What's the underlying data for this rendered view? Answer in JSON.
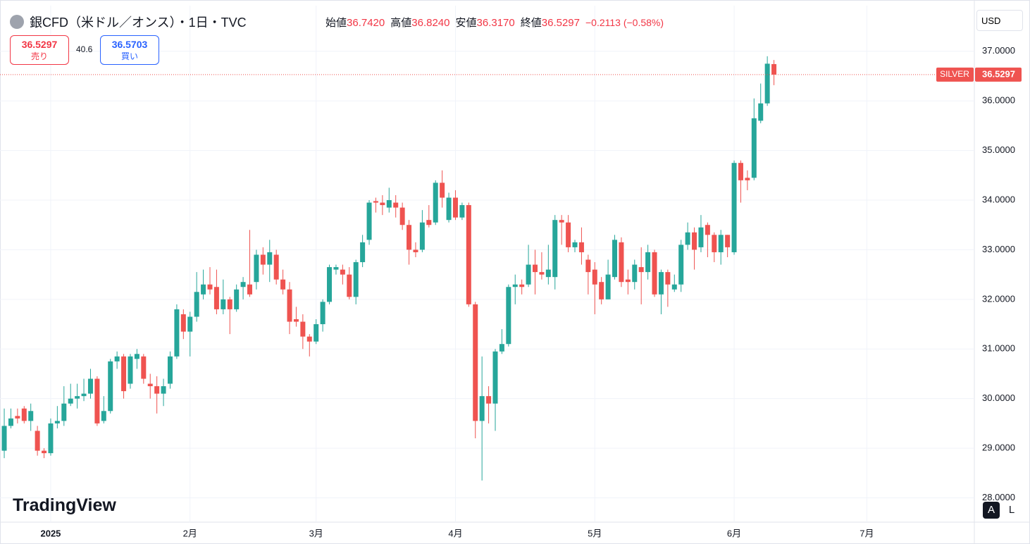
{
  "chart_data": {
    "type": "candlestick",
    "title": "銀CFD（米ドル／オンス）・1日・TVC",
    "ohlc_legend": {
      "labels": [
        "始値",
        "高値",
        "安値",
        "終値"
      ],
      "values": [
        36.742,
        36.824,
        36.317,
        36.5297
      ],
      "value_labels": [
        "36.7420",
        "36.8240",
        "36.3170",
        "36.5297"
      ]
    },
    "change": "−0.2113 (−0.58%)",
    "sell": {
      "price": "36.5297",
      "label": "売り"
    },
    "spread": "40.6",
    "buy": {
      "price": "36.5703",
      "label": "買い"
    },
    "currency": "USD",
    "symbol_tag": "SILVER",
    "last_price": {
      "value": 36.5297,
      "label": "36.5297"
    },
    "logo": "TradingView",
    "buttons": [
      "A",
      "L"
    ],
    "up_color": "#26a69a",
    "down_color": "#ef5350",
    "grid": true,
    "x": [
      0,
      1,
      2,
      3,
      4,
      5,
      6,
      7,
      8,
      9,
      10,
      11,
      12,
      13,
      14,
      15,
      16,
      17,
      18,
      19,
      20,
      21,
      22,
      23,
      24,
      25,
      26,
      27,
      28,
      29,
      30,
      31,
      32,
      33,
      34,
      35,
      36,
      37,
      38,
      39,
      40,
      41,
      42,
      43,
      44,
      45,
      46,
      47,
      48,
      49,
      50,
      51,
      52,
      53,
      54,
      55,
      56,
      57,
      58,
      59,
      60,
      61,
      62,
      63,
      64,
      65,
      66,
      67,
      68,
      69,
      70,
      71,
      72,
      73,
      74,
      75,
      76,
      77,
      78,
      79,
      80,
      81,
      82,
      83,
      84,
      85,
      86,
      87,
      88,
      89,
      90,
      91,
      92,
      93,
      94,
      95,
      96,
      97,
      98,
      99,
      100,
      101,
      102,
      103,
      104,
      105,
      106,
      107,
      108,
      109,
      110,
      111,
      112,
      113,
      114,
      115,
      116
    ],
    "open": [
      28.95,
      29.45,
      29.65,
      29.8,
      29.55,
      29.35,
      28.95,
      28.9,
      29.5,
      29.55,
      29.9,
      30.0,
      30.05,
      30.1,
      30.4,
      29.55,
      29.75,
      30.75,
      30.85,
      30.3,
      30.8,
      30.85,
      30.3,
      30.25,
      30.1,
      30.3,
      30.85,
      31.7,
      31.35,
      31.65,
      32.1,
      32.3,
      32.25,
      31.8,
      32.0,
      31.8,
      32.25,
      32.3,
      32.35,
      32.9,
      32.7,
      32.9,
      32.4,
      32.2,
      31.6,
      31.55,
      31.25,
      31.15,
      31.5,
      31.95,
      32.6,
      32.6,
      32.5,
      32.05,
      32.75,
      33.2,
      33.98,
      33.95,
      33.85,
      33.95,
      33.85,
      33.5,
      33.0,
      33.0,
      33.6,
      33.55,
      34.35,
      33.6,
      34.05,
      33.65,
      33.9,
      31.9,
      29.55,
      30.05,
      29.9,
      30.95,
      31.1,
      32.25,
      32.3,
      32.3,
      32.7,
      32.55,
      32.45,
      32.45,
      33.6,
      33.55,
      33.05,
      33.15,
      32.8,
      32.6,
      32.35,
      32.0,
      32.45,
      33.15,
      32.4,
      32.35,
      32.65,
      32.55,
      32.95,
      32.1,
      32.55,
      32.2,
      32.3,
      33.1,
      33.35,
      33.05,
      33.5,
      33.3,
      32.95,
      33.3,
      32.95,
      34.75,
      34.45,
      34.45,
      35.6,
      35.95,
      36.742
    ],
    "high": [
      29.8,
      29.8,
      29.8,
      29.85,
      29.9,
      29.45,
      29.0,
      29.6,
      29.85,
      30.25,
      30.3,
      30.3,
      30.4,
      30.6,
      30.45,
      30.05,
      30.8,
      30.95,
      30.9,
      30.9,
      31.0,
      30.9,
      30.5,
      30.45,
      30.4,
      30.95,
      31.9,
      31.8,
      31.75,
      32.55,
      32.6,
      32.65,
      32.6,
      32.4,
      32.05,
      32.3,
      32.45,
      33.4,
      33.0,
      33.05,
      33.2,
      33.0,
      32.6,
      32.35,
      31.85,
      31.7,
      31.3,
      31.6,
      32.0,
      32.7,
      32.7,
      32.7,
      32.65,
      32.8,
      33.3,
      34.0,
      34.05,
      34.1,
      34.25,
      34.1,
      33.95,
      33.6,
      33.15,
      33.8,
      33.9,
      34.4,
      34.6,
      34.15,
      34.2,
      33.95,
      33.95,
      31.95,
      30.85,
      30.25,
      31.0,
      31.4,
      32.3,
      32.5,
      32.4,
      33.1,
      33.0,
      32.95,
      33.1,
      33.7,
      33.7,
      33.7,
      33.2,
      33.45,
      32.9,
      32.75,
      32.45,
      32.8,
      33.3,
      33.25,
      32.6,
      32.8,
      33.05,
      33.1,
      33.0,
      32.6,
      32.6,
      32.5,
      33.2,
      33.55,
      33.45,
      33.7,
      33.55,
      33.35,
      33.4,
      33.3,
      34.8,
      34.8,
      34.6,
      36.05,
      36.35,
      36.9,
      36.824
    ],
    "low": [
      28.8,
      29.4,
      29.5,
      29.5,
      29.35,
      28.85,
      28.8,
      28.85,
      29.4,
      29.45,
      29.85,
      29.8,
      29.95,
      30.0,
      29.45,
      29.5,
      29.7,
      30.6,
      30.0,
      30.2,
      30.6,
      30.3,
      30.0,
      29.7,
      29.85,
      30.2,
      30.8,
      31.2,
      30.85,
      31.55,
      32.0,
      32.1,
      31.7,
      31.7,
      31.3,
      31.75,
      32.0,
      32.05,
      32.2,
      32.5,
      32.35,
      32.3,
      32.1,
      31.3,
      31.45,
      31.0,
      30.85,
      31.1,
      31.35,
      31.9,
      32.5,
      32.3,
      32.0,
      31.9,
      32.65,
      33.1,
      33.75,
      33.7,
      33.75,
      33.65,
      33.4,
      32.7,
      32.85,
      32.95,
      33.45,
      33.5,
      33.85,
      33.55,
      33.6,
      33.6,
      31.85,
      29.2,
      28.35,
      29.5,
      29.35,
      30.9,
      31.05,
      31.9,
      32.1,
      32.25,
      32.1,
      32.4,
      32.3,
      32.2,
      33.1,
      32.95,
      32.95,
      32.7,
      32.1,
      31.7,
      31.9,
      32.0,
      32.4,
      32.25,
      32.1,
      32.2,
      31.9,
      32.4,
      32.05,
      31.7,
      31.85,
      32.15,
      32.15,
      33.0,
      32.6,
      32.95,
      32.85,
      32.75,
      32.7,
      32.85,
      32.9,
      33.95,
      34.2,
      34.4,
      35.55,
      35.9,
      36.317
    ],
    "close": [
      29.45,
      29.6,
      29.6,
      29.55,
      29.75,
      28.95,
      28.9,
      29.5,
      29.55,
      29.9,
      30.0,
      30.05,
      30.1,
      30.4,
      29.5,
      29.75,
      30.75,
      30.85,
      30.15,
      30.85,
      30.9,
      30.4,
      30.25,
      30.1,
      30.25,
      30.85,
      31.8,
      31.35,
      31.65,
      32.15,
      32.3,
      32.2,
      31.8,
      32.0,
      31.8,
      32.2,
      32.35,
      32.1,
      32.9,
      32.7,
      32.95,
      32.4,
      32.2,
      31.55,
      31.55,
      31.25,
      31.15,
      31.5,
      31.95,
      32.65,
      32.65,
      32.5,
      32.05,
      32.75,
      33.15,
      33.95,
      33.95,
      33.9,
      34.0,
      33.85,
      33.5,
      33.0,
      32.95,
      33.55,
      33.5,
      34.35,
      34.05,
      34.05,
      33.65,
      33.9,
      31.9,
      29.55,
      30.05,
      29.9,
      30.95,
      31.1,
      32.25,
      32.3,
      32.25,
      32.7,
      32.55,
      32.5,
      32.6,
      33.6,
      33.55,
      33.05,
      33.15,
      32.95,
      32.55,
      32.3,
      32.0,
      32.5,
      33.2,
      32.35,
      32.35,
      32.7,
      32.55,
      32.95,
      32.1,
      32.55,
      32.3,
      32.3,
      33.1,
      33.35,
      33.0,
      33.45,
      33.3,
      32.95,
      33.3,
      33.05,
      34.75,
      34.4,
      34.4,
      35.65,
      35.95,
      36.75,
      36.5297
    ],
    "xlim": [
      -0.64,
      146.2
    ],
    "xticks": [
      {
        "value": 7,
        "label": "2025"
      },
      {
        "value": 28,
        "label": "2月"
      },
      {
        "value": 47,
        "label": "3月"
      },
      {
        "value": 68,
        "label": "4月"
      },
      {
        "value": 89,
        "label": "5月"
      },
      {
        "value": 110,
        "label": "6月"
      },
      {
        "value": 130,
        "label": "7月"
      }
    ],
    "ylim": [
      27.51,
      37.92
    ],
    "yticks": [
      {
        "value": 28,
        "label": "28.0000"
      },
      {
        "value": 29,
        "label": "29.0000"
      },
      {
        "value": 30,
        "label": "30.0000"
      },
      {
        "value": 31,
        "label": "31.0000"
      },
      {
        "value": 32,
        "label": "32.0000"
      },
      {
        "value": 33,
        "label": "33.0000"
      },
      {
        "value": 34,
        "label": "34.0000"
      },
      {
        "value": 35,
        "label": "35.0000"
      },
      {
        "value": 36,
        "label": "36.0000"
      },
      {
        "value": 37,
        "label": "37.0000"
      }
    ]
  }
}
